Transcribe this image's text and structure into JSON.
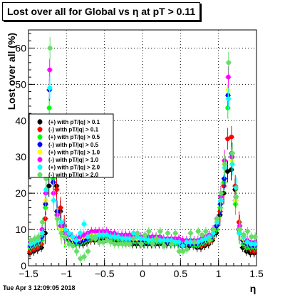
{
  "chart_data": {
    "type": "scatter",
    "title": "Lost over all for Global vs   η at pT > 0.11",
    "xlabel": "η",
    "ylabel": "Lost over all (%)",
    "xlim": [
      -1.5,
      1.5
    ],
    "ylim": [
      0,
      65
    ],
    "x_ticks": [
      -1.5,
      -1,
      -0.5,
      0,
      0.5,
      1,
      1.5
    ],
    "x_tick_labels": [
      "−1.5",
      "−1",
      "−0.5",
      "0",
      "0.5",
      "1",
      "1.5"
    ],
    "y_ticks": [
      0,
      10,
      20,
      30,
      40,
      50,
      60
    ],
    "y_tick_labels": [
      "0",
      "10",
      "20",
      "30",
      "40",
      "50",
      "60"
    ],
    "grid": true,
    "legend_position": "left-middle",
    "footer": "Tue Apr  3 12:09:05 2018",
    "x": [
      -1.475,
      -1.425,
      -1.375,
      -1.325,
      -1.275,
      -1.225,
      -1.175,
      -1.125,
      -1.075,
      -1.025,
      -0.975,
      -0.925,
      -0.875,
      -0.825,
      -0.775,
      -0.725,
      -0.675,
      -0.625,
      -0.575,
      -0.525,
      -0.475,
      -0.425,
      -0.375,
      -0.325,
      -0.275,
      -0.225,
      -0.175,
      -0.125,
      -0.075,
      -0.025,
      0.025,
      0.075,
      0.125,
      0.175,
      0.225,
      0.275,
      0.325,
      0.375,
      0.425,
      0.475,
      0.525,
      0.575,
      0.625,
      0.675,
      0.725,
      0.775,
      0.825,
      0.875,
      0.925,
      0.975,
      1.025,
      1.075,
      1.125,
      1.175,
      1.225,
      1.275,
      1.325,
      1.375,
      1.425,
      1.475
    ],
    "series": [
      {
        "name": "(+) with pT/|q| > 0.1",
        "color": "#000000",
        "marker": "circle",
        "values": [
          3.5,
          4,
          4.5,
          5,
          9,
          22,
          28,
          22,
          15,
          10,
          8,
          7,
          6.5,
          6,
          6,
          6.5,
          7,
          7,
          7,
          7.5,
          7.5,
          7.5,
          7,
          7,
          7,
          6.5,
          6.5,
          6,
          6,
          6,
          6,
          6,
          6,
          6,
          6,
          6,
          6,
          6,
          6,
          6,
          5.5,
          5.5,
          5.5,
          5.5,
          5,
          5,
          5.5,
          6,
          7,
          9,
          14,
          20,
          26,
          26.5,
          21,
          10,
          5,
          4,
          3.5,
          3.5
        ]
      },
      {
        "name": "(-) with pT/|q| > 0.1",
        "color": "#ff0000",
        "marker": "circle",
        "values": [
          4,
          4.5,
          5,
          6,
          13,
          33,
          28,
          21,
          16,
          11,
          9,
          8,
          7,
          7,
          6.5,
          7,
          7,
          7.5,
          8,
          8,
          8,
          8,
          7.5,
          7.5,
          7.5,
          7,
          7,
          6.5,
          6.5,
          6.5,
          6.5,
          6.5,
          6.5,
          6.5,
          6.5,
          6.5,
          6.5,
          6.5,
          6,
          6,
          6,
          6,
          6,
          5.5,
          5.5,
          5.5,
          6,
          6.5,
          7.5,
          10,
          15,
          22,
          35,
          35.5,
          22,
          12,
          7,
          5,
          4.5,
          4
        ]
      },
      {
        "name": "(+) with pT/|q| > 0.5",
        "color": "#00ff00",
        "marker": "circle",
        "values": [
          5,
          5.5,
          6,
          7,
          16,
          43.5,
          24,
          14,
          10,
          8,
          7,
          6.5,
          6,
          6,
          6.5,
          7,
          7.5,
          7.5,
          8,
          8,
          8,
          7.5,
          7.5,
          7.5,
          7,
          7,
          7,
          6.5,
          6.5,
          6.5,
          6.5,
          6.5,
          6.5,
          6.5,
          6.5,
          6.5,
          6.5,
          6,
          6,
          6,
          6,
          6,
          6,
          5.5,
          5.5,
          6,
          6.5,
          7,
          8,
          10,
          16,
          23,
          43.5,
          30,
          17,
          9,
          6,
          5,
          5,
          5
        ]
      },
      {
        "name": "(-) with pT/|q| > 0.5",
        "color": "#0000ff",
        "marker": "circle",
        "values": [
          5.5,
          6,
          6.5,
          8,
          17,
          48.5,
          23,
          15,
          11,
          9,
          7.5,
          7,
          6.5,
          6.5,
          7,
          7.5,
          8,
          8,
          8.5,
          8.5,
          8.5,
          8,
          8,
          8,
          7.5,
          7.5,
          7.5,
          7,
          7,
          7,
          7,
          7,
          7,
          7,
          7,
          7,
          6.5,
          6.5,
          6.5,
          6.5,
          6,
          6,
          6,
          6,
          6,
          6.5,
          7,
          7.5,
          8.5,
          11,
          17,
          24,
          47,
          31,
          18,
          10,
          7,
          6,
          5.5,
          5.5
        ]
      },
      {
        "name": "(+) with pT/|q| > 1.0",
        "color": "#ffff00",
        "marker": "circle",
        "values": [
          6,
          6.5,
          7,
          9,
          18,
          49,
          20,
          13,
          10,
          8.5,
          8,
          7.5,
          7,
          7.5,
          8,
          8.5,
          9,
          9,
          9,
          9,
          9,
          8.5,
          8.5,
          8,
          8,
          8,
          8,
          7.5,
          7.5,
          7.5,
          7.5,
          7.5,
          7.5,
          7.5,
          7.5,
          7,
          7,
          7,
          7,
          7,
          7,
          6.5,
          6.5,
          6.5,
          6.5,
          7,
          7.5,
          8,
          9,
          12,
          18,
          28,
          48.5,
          29,
          18,
          10,
          7.5,
          6.5,
          6,
          6
        ]
      },
      {
        "name": "(-) with pT/|q| > 1.0",
        "color": "#ff00ff",
        "marker": "circle",
        "values": [
          6.5,
          7,
          7.5,
          10,
          20,
          54,
          20,
          14,
          11,
          9,
          8.5,
          8,
          7.5,
          8,
          8.5,
          9,
          9.5,
          9.5,
          9.5,
          9.5,
          9.5,
          9,
          9,
          8.5,
          8.5,
          8.5,
          8.5,
          8,
          8,
          8,
          8,
          8,
          8,
          8,
          8,
          7.5,
          7.5,
          7.5,
          7.5,
          7.5,
          7,
          7,
          7,
          7,
          7,
          7.5,
          8,
          8.5,
          10,
          13,
          19,
          29,
          52,
          30,
          19,
          11,
          8,
          7,
          6.5,
          6.5
        ]
      },
      {
        "name": "(+) with pT/|q| > 2.0",
        "color": "#00ffff",
        "marker": "circle",
        "values": [
          6,
          6.5,
          7,
          9,
          21,
          49,
          18,
          13,
          12,
          10,
          9,
          8,
          7,
          9,
          11.5,
          8,
          8,
          8,
          8.5,
          8.5,
          8.5,
          8,
          8,
          8,
          7.5,
          7.5,
          7.5,
          9,
          8,
          7.5,
          7.5,
          7,
          7,
          7,
          7,
          7,
          7,
          7,
          6.5,
          6.5,
          5.5,
          6.5,
          6.5,
          6.5,
          6.5,
          7,
          7.5,
          8,
          9,
          12,
          18,
          27,
          46,
          28,
          21.5,
          9,
          8,
          6.5,
          6,
          6
        ]
      },
      {
        "name": "(-) with pT/|q| > 2.0",
        "color": "#66dd66",
        "marker": "circle",
        "values": [
          7,
          7.5,
          8,
          12,
          24,
          60,
          25,
          13,
          9,
          8,
          6,
          5.5,
          4,
          2,
          2.5,
          4,
          8,
          7.5,
          6.5,
          6.5,
          7,
          6.5,
          6,
          6,
          6,
          6,
          6,
          7.5,
          9,
          6,
          8.5,
          9.5,
          6,
          7.5,
          9.5,
          5.5,
          9,
          6,
          9,
          4,
          4,
          4.5,
          9,
          6.5,
          9.5,
          8.5,
          9.5,
          7,
          10,
          13,
          20,
          28,
          56,
          31,
          19,
          10,
          8.5,
          9.5,
          8,
          8
        ]
      }
    ]
  }
}
